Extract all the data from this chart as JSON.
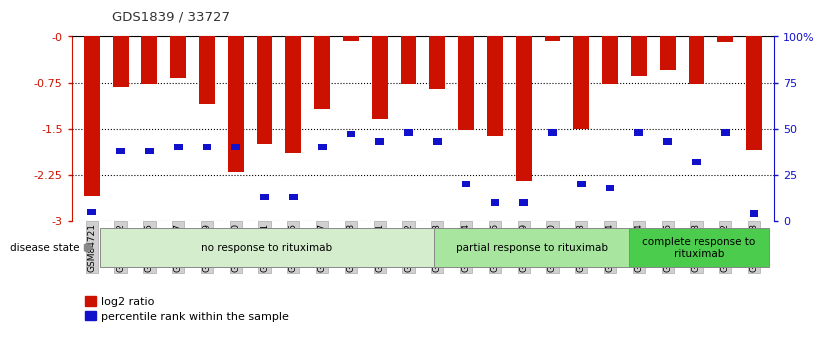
{
  "title": "GDS1839 / 33727",
  "samples": [
    "GSM84721",
    "GSM84722",
    "GSM84725",
    "GSM84727",
    "GSM84729",
    "GSM84730",
    "GSM84731",
    "GSM84735",
    "GSM84737",
    "GSM84738",
    "GSM84741",
    "GSM84742",
    "GSM84723",
    "GSM84734",
    "GSM84736",
    "GSM84739",
    "GSM84740",
    "GSM84743",
    "GSM84744",
    "GSM84724",
    "GSM84726",
    "GSM84728",
    "GSM84732",
    "GSM84733"
  ],
  "log2_ratio": [
    -2.6,
    -0.82,
    -0.77,
    -0.68,
    -1.1,
    -2.2,
    -1.75,
    -1.9,
    -1.18,
    -0.07,
    -1.35,
    -0.78,
    -0.85,
    -1.52,
    -1.62,
    -2.35,
    -0.08,
    -1.5,
    -0.77,
    -0.65,
    -0.55,
    -0.77,
    -0.09,
    -1.85
  ],
  "percentile_rank": [
    5,
    38,
    38,
    40,
    40,
    40,
    13,
    13,
    40,
    47,
    43,
    48,
    43,
    20,
    10,
    10,
    48,
    20,
    18,
    48,
    43,
    32,
    48,
    4
  ],
  "groups": [
    {
      "label": "no response to rituximab",
      "start": 0,
      "end": 12,
      "color": "#d4edcc"
    },
    {
      "label": "partial response to rituximab",
      "start": 12,
      "end": 19,
      "color": "#a8e6a0"
    },
    {
      "label": "complete response to\nrituximab",
      "start": 19,
      "end": 24,
      "color": "#4ccc4c"
    }
  ],
  "ylim_left": [
    -3.0,
    0.0
  ],
  "ylim_right": [
    0,
    100
  ],
  "yticks_left": [
    -3.0,
    -2.25,
    -1.5,
    -0.75,
    0.0
  ],
  "ytick_labels_left": [
    "-3",
    "-2.25",
    "-1.5",
    "-0.75",
    "-0"
  ],
  "yticks_right": [
    0,
    25,
    50,
    75,
    100
  ],
  "ytick_labels_right": [
    "0",
    "25",
    "50",
    "75",
    "100%"
  ],
  "bar_color": "#cc1100",
  "blue_color": "#1111cc",
  "left_axis_color": "#cc1100",
  "right_axis_color": "#1111cc",
  "bg_color": "#ffffff",
  "title_color": "#333333",
  "grid_color": "black",
  "bar_width": 0.55
}
